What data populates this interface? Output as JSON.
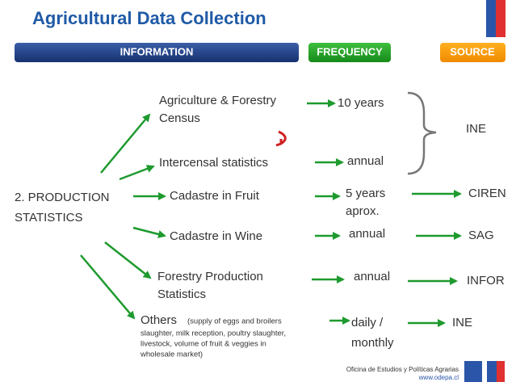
{
  "title": "Agricultural Data Collection",
  "headers": [
    "INFORMATION",
    "FREQUENCY",
    "SOURCE"
  ],
  "root": [
    "2. PRODUCTION",
    "STATISTICS"
  ],
  "items": [
    {
      "information": [
        "Agriculture & Forestry",
        "Census"
      ],
      "frequency": [
        "10 years"
      ]
    },
    {
      "information": [
        "Intercensal statistics"
      ],
      "frequency": [
        "annual"
      ]
    },
    {
      "information": [
        "Cadastre in Fruit"
      ],
      "frequency": [
        "5 years",
        "aprox."
      ],
      "source": "CIREN"
    },
    {
      "information": [
        "Cadastre in Wine"
      ],
      "frequency": [
        "annual"
      ],
      "source": "SAG"
    },
    {
      "information": [
        "Forestry Production",
        "Statistics"
      ],
      "frequency": [
        "annual"
      ],
      "source": "INFOR"
    },
    {
      "information": [
        "Others"
      ],
      "note": [
        "(supply of eggs and broilers",
        "slaughter, milk reception, poultry slaughter,",
        "livestock, volume of fruit & veggies in",
        "wholesale market)"
      ],
      "frequency": [
        "daily /",
        "monthly"
      ],
      "source": "INE"
    }
  ],
  "census_source": "INE",
  "footer": {
    "office": "Oficina de Estudios y Políticas Agrarias",
    "url": "www.odepa.cl"
  }
}
